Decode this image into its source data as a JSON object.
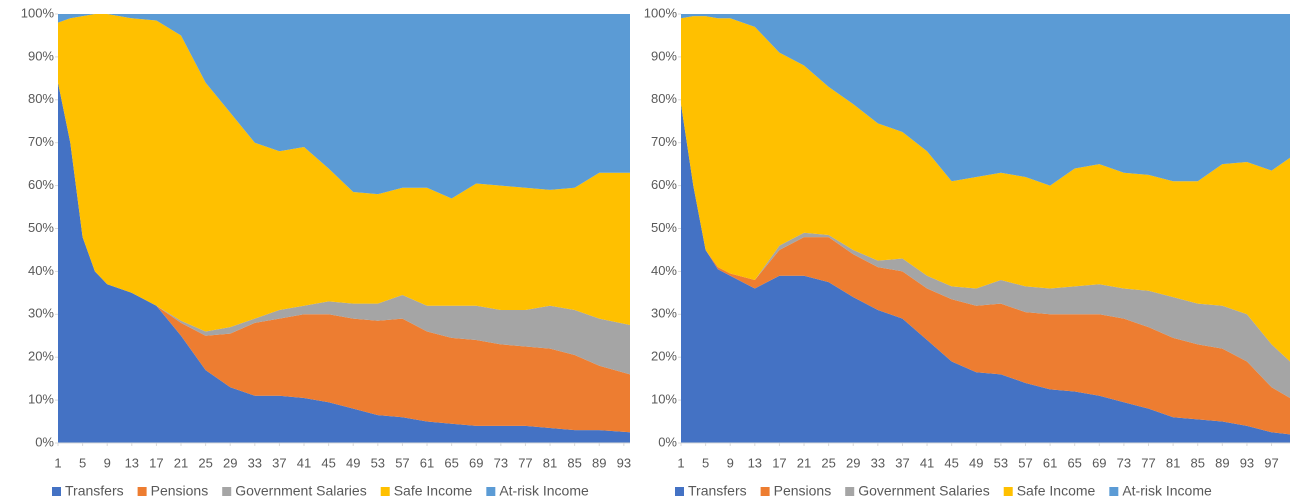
{
  "chart_data": [
    {
      "type": "area",
      "stacked": true,
      "x": [
        1,
        3,
        5,
        7,
        9,
        13,
        17,
        21,
        25,
        29,
        33,
        37,
        41,
        45,
        49,
        53,
        57,
        61,
        65,
        69,
        73,
        77,
        81,
        85,
        89,
        94
      ],
      "xlim": [
        1,
        94
      ],
      "xticks": [
        1,
        5,
        9,
        13,
        17,
        21,
        25,
        29,
        33,
        37,
        41,
        45,
        49,
        53,
        57,
        61,
        65,
        69,
        73,
        77,
        81,
        85,
        89,
        93
      ],
      "ylim": [
        0,
        100
      ],
      "yticks": [
        {
          "value": 0,
          "label": "0%"
        },
        {
          "value": 10,
          "label": "10%"
        },
        {
          "value": 20,
          "label": "20%"
        },
        {
          "value": 30,
          "label": "30%"
        },
        {
          "value": 40,
          "label": "40%"
        },
        {
          "value": 50,
          "label": "50%"
        },
        {
          "value": 60,
          "label": "60%"
        },
        {
          "value": 70,
          "label": "70%"
        },
        {
          "value": 80,
          "label": "80%"
        },
        {
          "value": 90,
          "label": "90%"
        },
        {
          "value": 100,
          "label": "100%"
        }
      ],
      "legend": "bottom",
      "series": [
        {
          "name": "Transfers",
          "color": "#4472c4",
          "values": [
            84,
            70,
            48,
            40,
            37,
            35,
            32,
            25,
            17,
            13,
            11,
            11,
            10.5,
            9.5,
            8,
            6.5,
            6,
            5,
            4.5,
            4,
            4,
            4,
            3.5,
            3,
            3,
            2.5
          ]
        },
        {
          "name": "Pensions",
          "color": "#ed7d31",
          "values": [
            0,
            0,
            0,
            0,
            0,
            0,
            0,
            3,
            8,
            12.5,
            17,
            18,
            19.5,
            20.5,
            21,
            22,
            23,
            21,
            20,
            20,
            19,
            18.5,
            18.5,
            17.5,
            15,
            13.5
          ]
        },
        {
          "name": "Government Salaries",
          "color": "#a5a5a5",
          "values": [
            0,
            0,
            0,
            0,
            0,
            0,
            0,
            0.5,
            1,
            1.5,
            1,
            2,
            2,
            3,
            3.5,
            4,
            5.5,
            6,
            7.5,
            8,
            8,
            8.5,
            10,
            10.5,
            11,
            11.5
          ]
        },
        {
          "name": "Safe Income",
          "color": "#ffc000",
          "values": [
            14,
            29,
            51.5,
            60,
            63,
            64,
            66.5,
            66.5,
            58,
            50,
            41,
            37,
            37,
            31,
            26,
            25.5,
            25,
            27.5,
            25,
            28.5,
            29,
            28.5,
            27,
            28.5,
            34,
            35.5
          ]
        },
        {
          "name": "At-risk Income",
          "color": "#5b9bd5",
          "values": [
            2,
            1,
            0.5,
            0,
            0,
            1,
            1.5,
            5,
            16,
            23,
            30,
            32,
            31,
            36,
            41.5,
            42,
            40.5,
            40.5,
            43,
            39.5,
            40,
            40.5,
            41,
            40.5,
            37,
            37
          ]
        }
      ]
    },
    {
      "type": "area",
      "stacked": true,
      "x": [
        1,
        3,
        5,
        7,
        9,
        13,
        17,
        21,
        25,
        29,
        33,
        37,
        41,
        45,
        49,
        53,
        57,
        61,
        65,
        69,
        73,
        77,
        81,
        85,
        89,
        93,
        97,
        100
      ],
      "xlim": [
        1,
        100
      ],
      "xticks": [
        1,
        5,
        9,
        13,
        17,
        21,
        25,
        29,
        33,
        37,
        41,
        45,
        49,
        53,
        57,
        61,
        65,
        69,
        73,
        77,
        81,
        85,
        89,
        93,
        97
      ],
      "ylim": [
        0,
        100
      ],
      "yticks": [
        {
          "value": 0,
          "label": "0%"
        },
        {
          "value": 10,
          "label": "10%"
        },
        {
          "value": 20,
          "label": "20%"
        },
        {
          "value": 30,
          "label": "30%"
        },
        {
          "value": 40,
          "label": "40%"
        },
        {
          "value": 50,
          "label": "50%"
        },
        {
          "value": 60,
          "label": "60%"
        },
        {
          "value": 70,
          "label": "70%"
        },
        {
          "value": 80,
          "label": "80%"
        },
        {
          "value": 90,
          "label": "90%"
        },
        {
          "value": 100,
          "label": "100%"
        }
      ],
      "legend": "bottom",
      "series": [
        {
          "name": "Transfers",
          "color": "#4472c4",
          "values": [
            79,
            60,
            45,
            40.5,
            39,
            36,
            39,
            39,
            37.5,
            34,
            31,
            29,
            24,
            19,
            16.5,
            16,
            14,
            12.5,
            12,
            11,
            9.5,
            8,
            6,
            5.5,
            5,
            4,
            2.5,
            2
          ]
        },
        {
          "name": "Pensions",
          "color": "#ed7d31",
          "values": [
            0,
            0,
            0,
            0.5,
            0.5,
            2,
            6,
            9,
            10.5,
            10,
            10,
            11,
            12,
            14.5,
            15.5,
            16.5,
            16.5,
            17.5,
            18,
            19,
            19.5,
            19,
            18.5,
            17.5,
            17,
            15,
            10.5,
            8.5
          ]
        },
        {
          "name": "Government Salaries",
          "color": "#a5a5a5",
          "values": [
            0,
            0,
            0,
            0,
            0,
            0,
            1,
            1,
            0.5,
            1,
            1.5,
            3,
            3,
            3,
            4,
            5.5,
            6,
            6,
            6.5,
            7,
            7,
            8.5,
            9.5,
            9.5,
            10,
            11,
            10,
            8.5
          ]
        },
        {
          "name": "Safe Income",
          "color": "#ffc000",
          "values": [
            20,
            39.5,
            54.5,
            58,
            59.5,
            59,
            45,
            39,
            34.5,
            34,
            32,
            29.5,
            29,
            24.5,
            26,
            25,
            25.5,
            24,
            27.5,
            28,
            27,
            27,
            27,
            28.5,
            33,
            35.5,
            40.5,
            47.5
          ]
        },
        {
          "name": "At-risk Income",
          "color": "#5b9bd5",
          "values": [
            1,
            0.5,
            0.5,
            1,
            1,
            3,
            9,
            12,
            17,
            21,
            25.5,
            27.5,
            32,
            39,
            38,
            37,
            38,
            40,
            36,
            35,
            37,
            37.5,
            39,
            39,
            35,
            34.5,
            36.5,
            33.5
          ]
        }
      ]
    }
  ]
}
